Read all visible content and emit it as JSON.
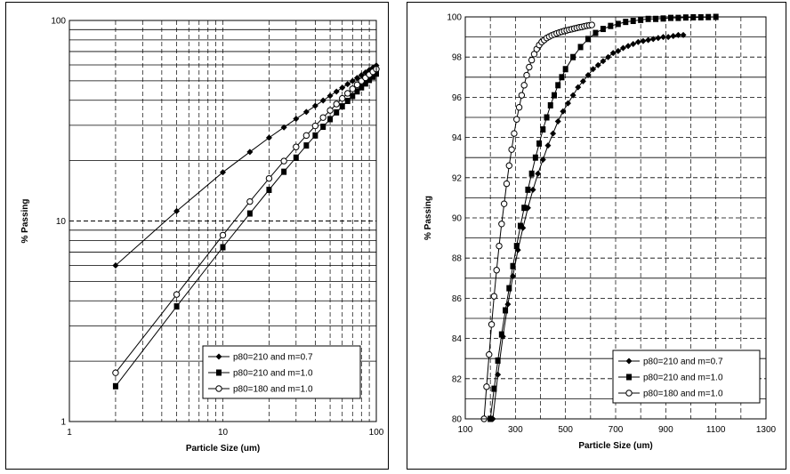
{
  "chart_data": [
    {
      "type": "line",
      "title": "",
      "xlabel": "Particle Size (um)",
      "ylabel": "% Passing",
      "x_scale": "log",
      "y_scale": "log",
      "xlim": [
        1,
        100
      ],
      "ylim": [
        1,
        100
      ],
      "x_ticks": [
        "1",
        "10",
        "100"
      ],
      "y_ticks": [
        "1",
        "10",
        "100"
      ],
      "grid": true,
      "legend_position": "bottom-right",
      "series": [
        {
          "name": "p80=210 and m=0.7",
          "marker": "diamond-filled",
          "x": [
            2,
            5,
            10,
            15,
            20,
            25,
            30,
            35,
            40,
            45,
            50,
            55,
            60,
            65,
            70,
            75,
            80,
            85,
            90,
            95,
            100
          ],
          "y": [
            6.0,
            11.2,
            17.5,
            22.1,
            26.0,
            29.3,
            32.3,
            35.0,
            37.5,
            39.9,
            42.1,
            44.2,
            46.2,
            48.1,
            49.9,
            51.7,
            53.4,
            55.0,
            56.6,
            58.1,
            59.6
          ]
        },
        {
          "name": "p80=210 and m=1.0",
          "marker": "square-filled",
          "x": [
            2,
            5,
            10,
            15,
            20,
            25,
            30,
            35,
            40,
            45,
            50,
            55,
            60,
            65,
            70,
            75,
            80,
            85,
            90,
            95,
            100
          ],
          "y": [
            1.5,
            3.75,
            7.4,
            10.9,
            14.3,
            17.6,
            20.7,
            23.8,
            26.7,
            29.5,
            32.2,
            34.8,
            37.3,
            39.7,
            42.0,
            44.3,
            46.4,
            48.5,
            50.5,
            52.4,
            54.3
          ]
        },
        {
          "name": "p80=180 and m=1.0",
          "marker": "circle-open",
          "x": [
            2,
            5,
            10,
            15,
            20,
            25,
            30,
            35,
            40,
            45,
            50,
            55,
            60,
            65,
            70,
            75,
            80,
            85,
            90,
            95,
            100
          ],
          "y": [
            1.75,
            4.3,
            8.5,
            12.5,
            16.3,
            19.9,
            23.4,
            26.7,
            29.8,
            32.8,
            35.6,
            38.3,
            40.9,
            43.3,
            45.6,
            47.8,
            49.9,
            51.8,
            53.7,
            55.5,
            57.2
          ]
        }
      ]
    },
    {
      "type": "line",
      "title": "",
      "xlabel": "Particle Size (um)",
      "ylabel": "% Passing",
      "x_scale": "linear",
      "y_scale": "linear",
      "xlim": [
        100,
        1300
      ],
      "ylim": [
        80,
        100
      ],
      "x_ticks": [
        "100",
        "300",
        "500",
        "700",
        "900",
        "1100",
        "1300"
      ],
      "y_ticks": [
        "80",
        "82",
        "84",
        "86",
        "88",
        "90",
        "92",
        "94",
        "96",
        "98",
        "100"
      ],
      "grid": true,
      "legend_position": "bottom-right",
      "series": [
        {
          "name": "p80=210 and m=0.7",
          "marker": "diamond-filled",
          "x": [
            210,
            230,
            250,
            270,
            290,
            310,
            330,
            350,
            370,
            390,
            410,
            430,
            450,
            470,
            490,
            510,
            530,
            550,
            570,
            590,
            610,
            630,
            650,
            670,
            690,
            710,
            730,
            750,
            770,
            790,
            810,
            830,
            850,
            870,
            890,
            910,
            930,
            950,
            970
          ],
          "y": [
            80.0,
            82.2,
            84.1,
            85.7,
            87.1,
            88.4,
            89.5,
            90.5,
            91.4,
            92.2,
            92.9,
            93.6,
            94.2,
            94.8,
            95.3,
            95.7,
            96.1,
            96.5,
            96.8,
            97.1,
            97.4,
            97.6,
            97.8,
            98.0,
            98.2,
            98.3,
            98.45,
            98.55,
            98.65,
            98.75,
            98.8,
            98.85,
            98.9,
            98.95,
            99.0,
            99.0,
            99.05,
            99.1,
            99.1
          ]
        },
        {
          "name": "p80=210 and m=1.0",
          "marker": "square-filled",
          "x": [
            200,
            215,
            230,
            245,
            260,
            275,
            290,
            305,
            320,
            335,
            350,
            365,
            380,
            395,
            410,
            425,
            440,
            455,
            470,
            485,
            500,
            530,
            560,
            590,
            620,
            650,
            680,
            710,
            740,
            770,
            800,
            830,
            860,
            890,
            920,
            950,
            980,
            1010,
            1040,
            1070,
            1100
          ],
          "y": [
            80.0,
            81.5,
            82.9,
            84.2,
            85.4,
            86.5,
            87.6,
            88.6,
            89.6,
            90.5,
            91.4,
            92.2,
            93.0,
            93.7,
            94.4,
            95.0,
            95.6,
            96.1,
            96.6,
            97.0,
            97.4,
            98.0,
            98.5,
            98.9,
            99.2,
            99.4,
            99.55,
            99.65,
            99.75,
            99.8,
            99.85,
            99.9,
            99.9,
            99.92,
            99.95,
            99.95,
            99.97,
            99.98,
            99.98,
            99.99,
            100.0
          ]
        },
        {
          "name": "p80=180 and m=1.0",
          "marker": "circle-open",
          "x": [
            175,
            185,
            195,
            205,
            215,
            225,
            235,
            245,
            255,
            265,
            275,
            285,
            295,
            305,
            315,
            325,
            335,
            345,
            355,
            365,
            375,
            385,
            395,
            405,
            415,
            425,
            435,
            445,
            455,
            465,
            475,
            485,
            495,
            505,
            515,
            525,
            535,
            545,
            555,
            565,
            575,
            585,
            595,
            605
          ],
          "y": [
            80.0,
            81.6,
            83.2,
            84.7,
            86.1,
            87.4,
            88.6,
            89.7,
            90.7,
            91.7,
            92.6,
            93.4,
            94.2,
            94.9,
            95.5,
            96.1,
            96.6,
            97.1,
            97.5,
            97.85,
            98.15,
            98.4,
            98.6,
            98.75,
            98.85,
            98.95,
            99.02,
            99.08,
            99.13,
            99.18,
            99.22,
            99.26,
            99.3,
            99.33,
            99.36,
            99.39,
            99.42,
            99.45,
            99.48,
            99.5,
            99.53,
            99.56,
            99.58,
            99.6
          ]
        }
      ]
    }
  ]
}
